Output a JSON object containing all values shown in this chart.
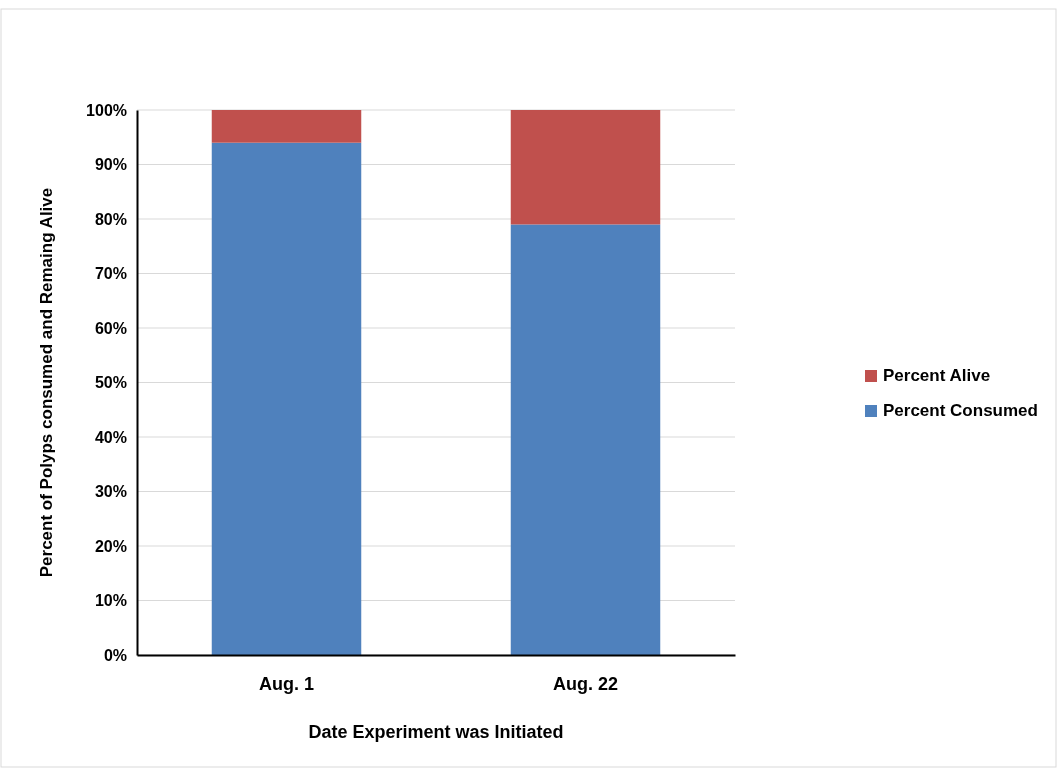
{
  "chart_data": {
    "type": "bar",
    "stacked": true,
    "xlabel": "Date Experiment was Initiated",
    "ylabel": "Percent of Polyps consumed and Remaing Alive",
    "categories": [
      "Aug. 1",
      "Aug. 22"
    ],
    "series": [
      {
        "name": "Percent Consumed",
        "color": "#4f81bd",
        "values": [
          94,
          79
        ]
      },
      {
        "name": "Percent Alive",
        "color": "#c0504d",
        "values": [
          6,
          21
        ]
      }
    ],
    "ylim": [
      0,
      100
    ],
    "yticks": [
      {
        "value": 0,
        "label": "0%"
      },
      {
        "value": 10,
        "label": "10%"
      },
      {
        "value": 20,
        "label": "20%"
      },
      {
        "value": 30,
        "label": "30%"
      },
      {
        "value": 40,
        "label": "40%"
      },
      {
        "value": 50,
        "label": "50%"
      },
      {
        "value": 60,
        "label": "60%"
      },
      {
        "value": 70,
        "label": "70%"
      },
      {
        "value": 80,
        "label": "80%"
      },
      {
        "value": 90,
        "label": "90%"
      },
      {
        "value": 100,
        "label": "100%"
      }
    ],
    "grid": "y",
    "legend": "right"
  }
}
